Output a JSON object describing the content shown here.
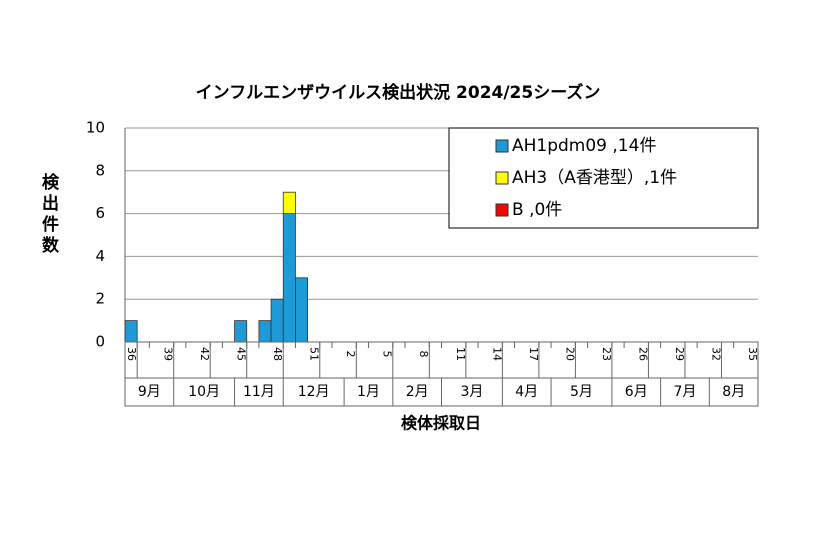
{
  "chart_data": {
    "type": "bar",
    "stacked": true,
    "title": "インフルエンザウイルス検出状況 2024/25シーズン",
    "ylabel": "検出件数",
    "xlabel": "検体採取日",
    "categories": [
      36,
      null,
      null,
      39,
      null,
      null,
      42,
      null,
      null,
      45,
      null,
      null,
      48,
      null,
      null,
      51,
      null,
      null,
      2,
      null,
      null,
      5,
      null,
      null,
      8,
      null,
      null,
      11,
      null,
      null,
      14,
      null,
      null,
      17,
      null,
      null,
      20,
      null,
      null,
      23,
      null,
      null,
      26,
      null,
      null,
      29,
      null,
      null,
      32,
      null,
      null,
      35
    ],
    "months": [
      "9月",
      "10月",
      "11月",
      "12月",
      "1月",
      "2月",
      "3月",
      "4月",
      "5月",
      "6月",
      "7月",
      "8月"
    ],
    "series": [
      {
        "name": "AH1pdm09 ,14件",
        "color": "#1e9ad6",
        "values": [
          1,
          0,
          0,
          0,
          0,
          0,
          0,
          0,
          0,
          1,
          0,
          1,
          2,
          6,
          3,
          0,
          0,
          0,
          0,
          0,
          0,
          0,
          0,
          0,
          0,
          0,
          0,
          0,
          0,
          0,
          0,
          0,
          0,
          0,
          0,
          0,
          0,
          0,
          0,
          0,
          0,
          0,
          0,
          0,
          0,
          0,
          0,
          0,
          0,
          0,
          0,
          0
        ]
      },
      {
        "name": "AH3（A香港型）,1件",
        "color": "#ffff00",
        "values": [
          0,
          0,
          0,
          0,
          0,
          0,
          0,
          0,
          0,
          0,
          0,
          0,
          0,
          1,
          0,
          0,
          0,
          0,
          0,
          0,
          0,
          0,
          0,
          0,
          0,
          0,
          0,
          0,
          0,
          0,
          0,
          0,
          0,
          0,
          0,
          0,
          0,
          0,
          0,
          0,
          0,
          0,
          0,
          0,
          0,
          0,
          0,
          0,
          0,
          0,
          0,
          0
        ]
      },
      {
        "name": "B ,0件",
        "color": "#ff0000",
        "values": [
          0,
          0,
          0,
          0,
          0,
          0,
          0,
          0,
          0,
          0,
          0,
          0,
          0,
          0,
          0,
          0,
          0,
          0,
          0,
          0,
          0,
          0,
          0,
          0,
          0,
          0,
          0,
          0,
          0,
          0,
          0,
          0,
          0,
          0,
          0,
          0,
          0,
          0,
          0,
          0,
          0,
          0,
          0,
          0,
          0,
          0,
          0,
          0,
          0,
          0,
          0,
          0
        ]
      }
    ],
    "ylim": [
      0,
      10
    ],
    "yticks": [
      0,
      2,
      4,
      6,
      8,
      10
    ],
    "grid": true,
    "legend": "top-right"
  }
}
